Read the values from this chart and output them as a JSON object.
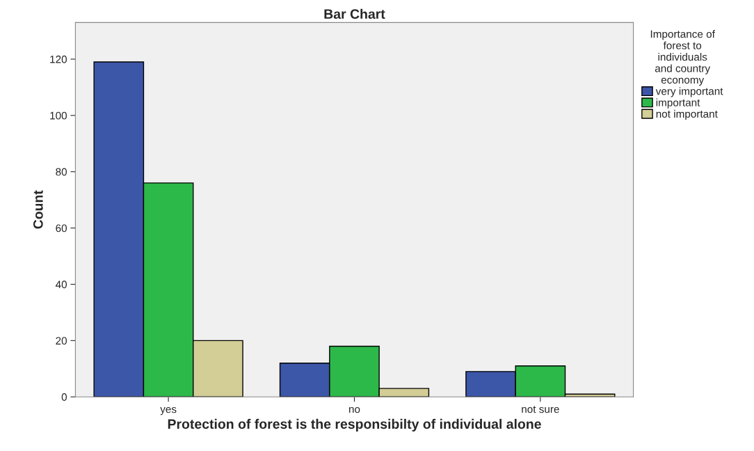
{
  "chart_data": {
    "type": "bar",
    "title": "Bar Chart",
    "xlabel": "Protection of forest is the responsibilty of individual alone",
    "ylabel": "Count",
    "legend_title": "Importance of forest to individuals and country economy",
    "categories": [
      "yes",
      "no",
      "not sure"
    ],
    "series": [
      {
        "name": "very important",
        "color": "#3c56a8",
        "values": [
          119,
          12,
          9
        ]
      },
      {
        "name": "important",
        "color": "#2db84a",
        "values": [
          76,
          18,
          11
        ]
      },
      {
        "name": "not important",
        "color": "#d3cd96",
        "values": [
          20,
          3,
          1
        ]
      }
    ],
    "ylim": [
      0,
      133
    ],
    "yticks": [
      0,
      20,
      40,
      60,
      80,
      100,
      120
    ],
    "grid": false,
    "legend": "right"
  }
}
